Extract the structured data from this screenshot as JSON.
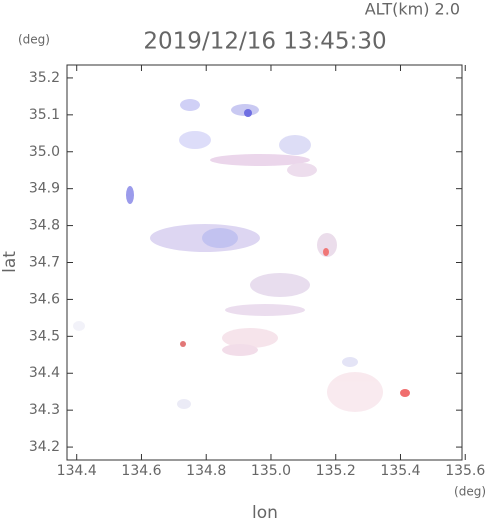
{
  "chart_data": {
    "type": "map",
    "title": "2019/12/16 13:45:30",
    "subtitle": "ALT(km)  2.0",
    "xlabel": "lon",
    "ylabel": "lat",
    "xunit": "(deg)",
    "yunit": "(deg)",
    "xlim": [
      134.37,
      135.59
    ],
    "ylim": [
      34.165,
      35.235
    ],
    "xticks": [
      134.4,
      134.6,
      134.8,
      {
        "value": 135,
        "label": "135.0"
      },
      135.2,
      135.4,
      135.6
    ],
    "yticks": [
      34.2,
      34.3,
      34.4,
      34.5,
      34.6,
      34.7,
      34.8,
      34.9,
      {
        "value": 35,
        "label": "35.0"
      },
      35.1,
      35.2
    ]
  }
}
